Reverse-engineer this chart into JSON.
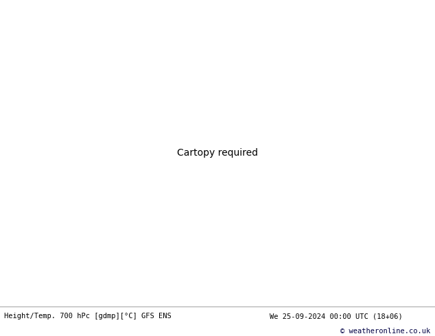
{
  "title_left": "Height/Temp. 700 hPc [gdmp][°C] GFS ENS",
  "title_right": "We 25-09-2024 00:00 UTC (18+06)",
  "copyright": "© weatheronline.co.uk",
  "bg_ocean": "#d8d8d8",
  "land_green": "#b8e890",
  "land_gray": "#a8a8a8",
  "contour_black": "#000000",
  "contour_red": "#cc0000",
  "contour_magenta": "#ee00aa",
  "contour_orange": "#ee8800",
  "footer_bg": "#ffffff",
  "footer_text_color": "#000000",
  "footer_right_color": "#000044",
  "map_extent": [
    -170,
    -50,
    20,
    80
  ],
  "figsize": [
    6.34,
    4.9
  ],
  "dpi": 100
}
